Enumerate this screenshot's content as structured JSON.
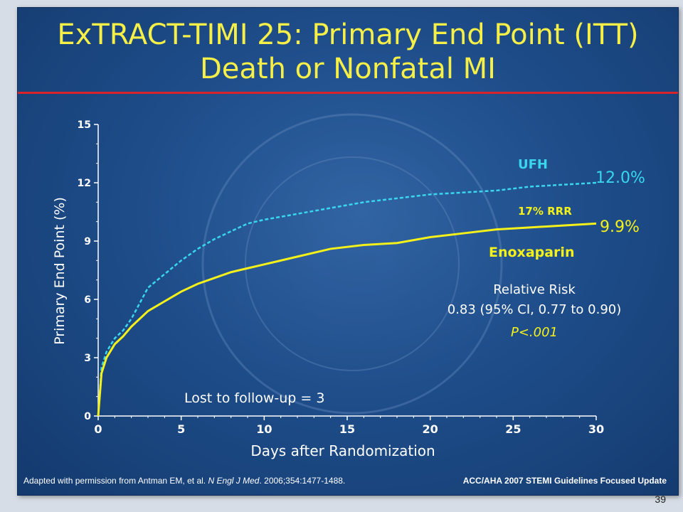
{
  "slide": {
    "title_line1": "ExTRACT-TIMI 25: Primary End Point (ITT)",
    "title_line2": "Death or Nonfatal MI",
    "footer_left_prefix": "Adapted with permission from Antman EM, et al. ",
    "footer_left_journal": "N Engl J Med",
    "footer_left_suffix": ". 2006;354:1477-1488.",
    "footer_right": "ACC/AHA 2007 STEMI Guidelines Focused Update",
    "page_number": "39"
  },
  "colors": {
    "ufh": "#39d6ee",
    "enoxaparin": "#f4f11a",
    "title": "#f6ef47",
    "rule": "#d8232a",
    "background": "#1e4d8a"
  },
  "chart_data": {
    "type": "line",
    "xlabel": "Days after Randomization",
    "ylabel": "Primary End Point (%)",
    "xlim": [
      0,
      30
    ],
    "ylim": [
      0,
      15
    ],
    "x_ticks": [
      0,
      5,
      10,
      15,
      20,
      25,
      30
    ],
    "y_ticks": [
      0,
      3,
      6,
      9,
      12,
      15
    ],
    "series": [
      {
        "name": "UFH",
        "style": "dashed",
        "end_label": "12.0%",
        "x": [
          0,
          0.2,
          0.5,
          1,
          1.5,
          2,
          3,
          4,
          5,
          6,
          7,
          8,
          9,
          10,
          12,
          14,
          16,
          18,
          20,
          22,
          24,
          26,
          28,
          30
        ],
        "y": [
          0,
          2.5,
          3.3,
          4.0,
          4.4,
          5.0,
          6.6,
          7.3,
          8.0,
          8.6,
          9.1,
          9.5,
          9.9,
          10.1,
          10.4,
          10.7,
          11.0,
          11.2,
          11.4,
          11.5,
          11.6,
          11.8,
          11.9,
          12.0
        ]
      },
      {
        "name": "Enoxaparin",
        "style": "solid",
        "end_label": "9.9%",
        "x": [
          0,
          0.2,
          0.5,
          1,
          1.5,
          2,
          3,
          4,
          5,
          6,
          7,
          8,
          9,
          10,
          12,
          14,
          16,
          18,
          20,
          22,
          24,
          26,
          28,
          30
        ],
        "y": [
          0,
          2.2,
          3.0,
          3.7,
          4.1,
          4.6,
          5.4,
          5.9,
          6.4,
          6.8,
          7.1,
          7.4,
          7.6,
          7.8,
          8.2,
          8.6,
          8.8,
          8.9,
          9.2,
          9.4,
          9.6,
          9.7,
          9.8,
          9.9
        ]
      }
    ],
    "annotations": {
      "rrr": "17% RRR",
      "relative_risk_label": "Relative Risk",
      "relative_risk_value": "0.83 (95% CI, 0.77 to 0.90)",
      "p_value": "P<.001",
      "lost_followup": "Lost to follow-up = 3"
    }
  }
}
